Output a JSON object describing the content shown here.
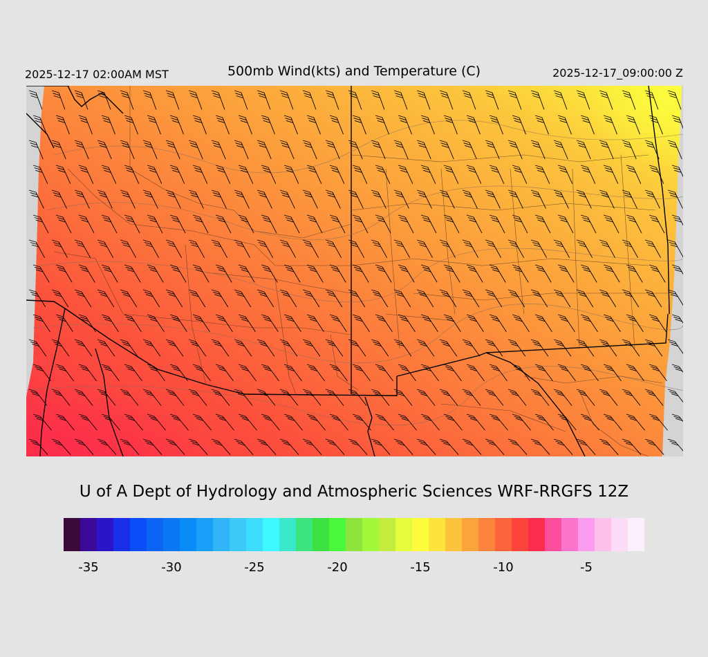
{
  "header": {
    "local_time": "2025-12-17 02:00AM MST",
    "title": "500mb Wind(kts) and Temperature (C)",
    "valid_time": "2025-12-17_09:00:00 Z"
  },
  "credit": "U of A Dept of Hydrology and Atmospheric Sciences WRF-RRGFS 12Z",
  "colorbar": {
    "colors": [
      "#3a0a3a",
      "#3c0a9a",
      "#2a16c8",
      "#1a30e8",
      "#0a4ef8",
      "#0a64f4",
      "#0a78f4",
      "#0a8cf8",
      "#1aa0f8",
      "#34b4f8",
      "#3cc8f8",
      "#3cdcfc",
      "#3ef8ff",
      "#3ce8cc",
      "#3ce47e",
      "#3ce040",
      "#4cf83c",
      "#8ce43c",
      "#a4f83c",
      "#c4ec3c",
      "#e4fc3c",
      "#fcfc3c",
      "#fce43c",
      "#fcc43c",
      "#fca43c",
      "#fc843c",
      "#fc643c",
      "#fc443c",
      "#fc2c4c",
      "#fc4c9c",
      "#fc74cc",
      "#fc9cf0",
      "#fcc0ec",
      "#fcdcf8",
      "#fcf0fc"
    ],
    "tick_labels": [
      "-35",
      "-30",
      "-25",
      "-20",
      "-15",
      "-10",
      "-5"
    ],
    "tick_values": [
      -35,
      -30,
      -25,
      -20,
      -15,
      -10,
      -5
    ],
    "min": -36,
    "max": -1
  },
  "map": {
    "wind_barb_color": "#000000",
    "border_color": "#000000",
    "ocean_color": "#d4d4d4"
  }
}
